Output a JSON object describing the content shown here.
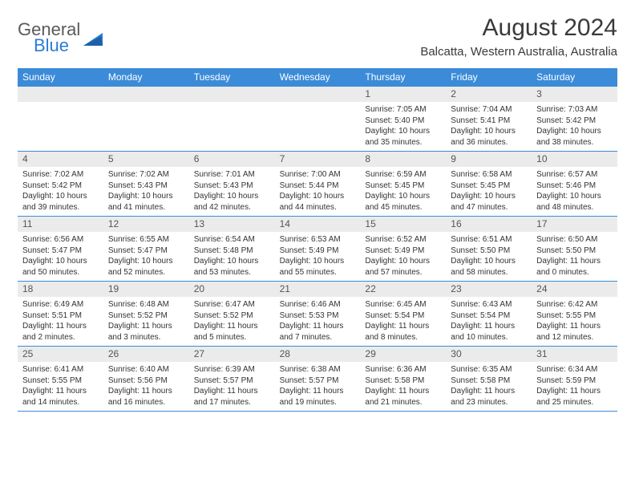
{
  "logo": {
    "word1": "General",
    "word2": "Blue"
  },
  "title": "August 2024",
  "location": "Balcatta, Western Australia, Australia",
  "colors": {
    "headerBlue": "#3b8bd8",
    "dayNumBg": "#ebebeb",
    "dividerBlue": "#3b8bd8",
    "textDark": "#3a3a3a",
    "logoGray": "#5a5a5a",
    "logoBlue": "#2b7cd3"
  },
  "weekdays": [
    "Sunday",
    "Monday",
    "Tuesday",
    "Wednesday",
    "Thursday",
    "Friday",
    "Saturday"
  ],
  "weeks": [
    [
      {
        "n": "",
        "sr": "",
        "ss": "",
        "dl": ""
      },
      {
        "n": "",
        "sr": "",
        "ss": "",
        "dl": ""
      },
      {
        "n": "",
        "sr": "",
        "ss": "",
        "dl": ""
      },
      {
        "n": "",
        "sr": "",
        "ss": "",
        "dl": ""
      },
      {
        "n": "1",
        "sr": "Sunrise: 7:05 AM",
        "ss": "Sunset: 5:40 PM",
        "dl": "Daylight: 10 hours and 35 minutes."
      },
      {
        "n": "2",
        "sr": "Sunrise: 7:04 AM",
        "ss": "Sunset: 5:41 PM",
        "dl": "Daylight: 10 hours and 36 minutes."
      },
      {
        "n": "3",
        "sr": "Sunrise: 7:03 AM",
        "ss": "Sunset: 5:42 PM",
        "dl": "Daylight: 10 hours and 38 minutes."
      }
    ],
    [
      {
        "n": "4",
        "sr": "Sunrise: 7:02 AM",
        "ss": "Sunset: 5:42 PM",
        "dl": "Daylight: 10 hours and 39 minutes."
      },
      {
        "n": "5",
        "sr": "Sunrise: 7:02 AM",
        "ss": "Sunset: 5:43 PM",
        "dl": "Daylight: 10 hours and 41 minutes."
      },
      {
        "n": "6",
        "sr": "Sunrise: 7:01 AM",
        "ss": "Sunset: 5:43 PM",
        "dl": "Daylight: 10 hours and 42 minutes."
      },
      {
        "n": "7",
        "sr": "Sunrise: 7:00 AM",
        "ss": "Sunset: 5:44 PM",
        "dl": "Daylight: 10 hours and 44 minutes."
      },
      {
        "n": "8",
        "sr": "Sunrise: 6:59 AM",
        "ss": "Sunset: 5:45 PM",
        "dl": "Daylight: 10 hours and 45 minutes."
      },
      {
        "n": "9",
        "sr": "Sunrise: 6:58 AM",
        "ss": "Sunset: 5:45 PM",
        "dl": "Daylight: 10 hours and 47 minutes."
      },
      {
        "n": "10",
        "sr": "Sunrise: 6:57 AM",
        "ss": "Sunset: 5:46 PM",
        "dl": "Daylight: 10 hours and 48 minutes."
      }
    ],
    [
      {
        "n": "11",
        "sr": "Sunrise: 6:56 AM",
        "ss": "Sunset: 5:47 PM",
        "dl": "Daylight: 10 hours and 50 minutes."
      },
      {
        "n": "12",
        "sr": "Sunrise: 6:55 AM",
        "ss": "Sunset: 5:47 PM",
        "dl": "Daylight: 10 hours and 52 minutes."
      },
      {
        "n": "13",
        "sr": "Sunrise: 6:54 AM",
        "ss": "Sunset: 5:48 PM",
        "dl": "Daylight: 10 hours and 53 minutes."
      },
      {
        "n": "14",
        "sr": "Sunrise: 6:53 AM",
        "ss": "Sunset: 5:49 PM",
        "dl": "Daylight: 10 hours and 55 minutes."
      },
      {
        "n": "15",
        "sr": "Sunrise: 6:52 AM",
        "ss": "Sunset: 5:49 PM",
        "dl": "Daylight: 10 hours and 57 minutes."
      },
      {
        "n": "16",
        "sr": "Sunrise: 6:51 AM",
        "ss": "Sunset: 5:50 PM",
        "dl": "Daylight: 10 hours and 58 minutes."
      },
      {
        "n": "17",
        "sr": "Sunrise: 6:50 AM",
        "ss": "Sunset: 5:50 PM",
        "dl": "Daylight: 11 hours and 0 minutes."
      }
    ],
    [
      {
        "n": "18",
        "sr": "Sunrise: 6:49 AM",
        "ss": "Sunset: 5:51 PM",
        "dl": "Daylight: 11 hours and 2 minutes."
      },
      {
        "n": "19",
        "sr": "Sunrise: 6:48 AM",
        "ss": "Sunset: 5:52 PM",
        "dl": "Daylight: 11 hours and 3 minutes."
      },
      {
        "n": "20",
        "sr": "Sunrise: 6:47 AM",
        "ss": "Sunset: 5:52 PM",
        "dl": "Daylight: 11 hours and 5 minutes."
      },
      {
        "n": "21",
        "sr": "Sunrise: 6:46 AM",
        "ss": "Sunset: 5:53 PM",
        "dl": "Daylight: 11 hours and 7 minutes."
      },
      {
        "n": "22",
        "sr": "Sunrise: 6:45 AM",
        "ss": "Sunset: 5:54 PM",
        "dl": "Daylight: 11 hours and 8 minutes."
      },
      {
        "n": "23",
        "sr": "Sunrise: 6:43 AM",
        "ss": "Sunset: 5:54 PM",
        "dl": "Daylight: 11 hours and 10 minutes."
      },
      {
        "n": "24",
        "sr": "Sunrise: 6:42 AM",
        "ss": "Sunset: 5:55 PM",
        "dl": "Daylight: 11 hours and 12 minutes."
      }
    ],
    [
      {
        "n": "25",
        "sr": "Sunrise: 6:41 AM",
        "ss": "Sunset: 5:55 PM",
        "dl": "Daylight: 11 hours and 14 minutes."
      },
      {
        "n": "26",
        "sr": "Sunrise: 6:40 AM",
        "ss": "Sunset: 5:56 PM",
        "dl": "Daylight: 11 hours and 16 minutes."
      },
      {
        "n": "27",
        "sr": "Sunrise: 6:39 AM",
        "ss": "Sunset: 5:57 PM",
        "dl": "Daylight: 11 hours and 17 minutes."
      },
      {
        "n": "28",
        "sr": "Sunrise: 6:38 AM",
        "ss": "Sunset: 5:57 PM",
        "dl": "Daylight: 11 hours and 19 minutes."
      },
      {
        "n": "29",
        "sr": "Sunrise: 6:36 AM",
        "ss": "Sunset: 5:58 PM",
        "dl": "Daylight: 11 hours and 21 minutes."
      },
      {
        "n": "30",
        "sr": "Sunrise: 6:35 AM",
        "ss": "Sunset: 5:58 PM",
        "dl": "Daylight: 11 hours and 23 minutes."
      },
      {
        "n": "31",
        "sr": "Sunrise: 6:34 AM",
        "ss": "Sunset: 5:59 PM",
        "dl": "Daylight: 11 hours and 25 minutes."
      }
    ]
  ]
}
